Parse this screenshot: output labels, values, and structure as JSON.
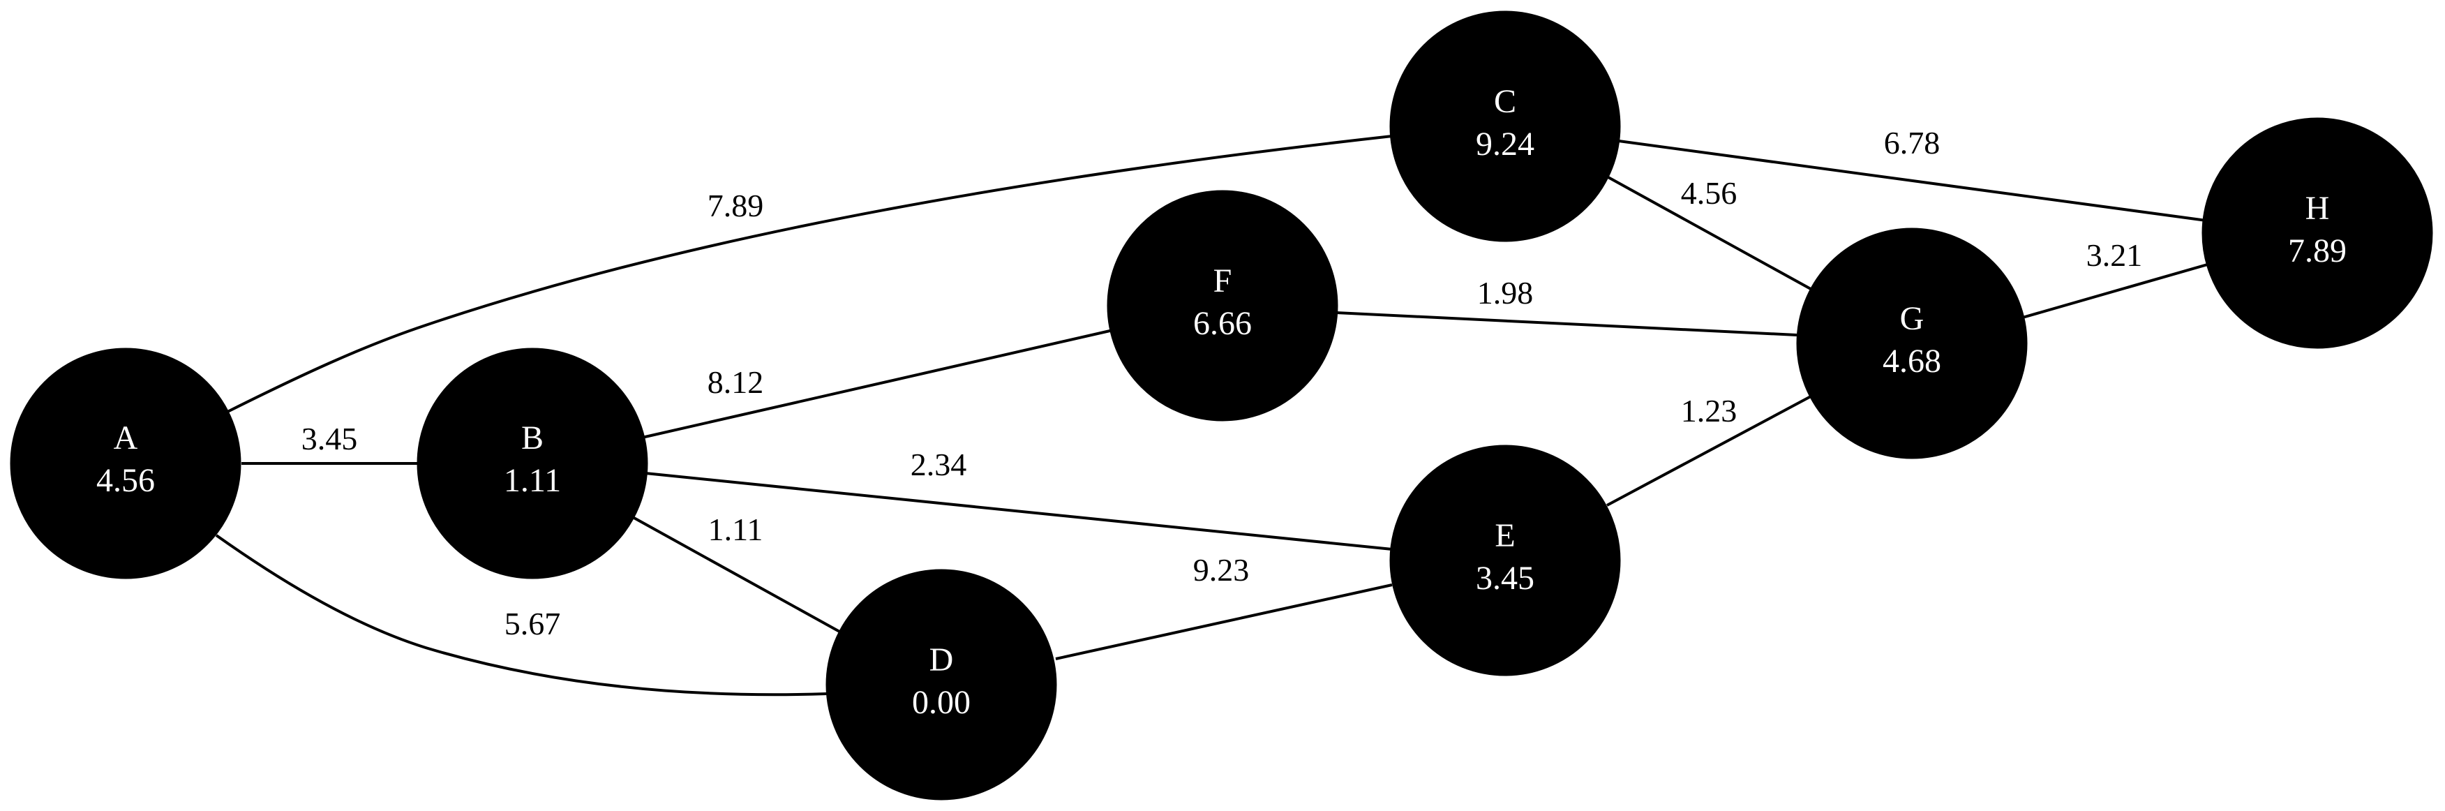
{
  "graph": {
    "nodes": [
      {
        "id": "A",
        "label": "A",
        "value": "4.56"
      },
      {
        "id": "B",
        "label": "B",
        "value": "1.11"
      },
      {
        "id": "C",
        "label": "C",
        "value": "9.24"
      },
      {
        "id": "D",
        "label": "D",
        "value": "0.00"
      },
      {
        "id": "E",
        "label": "E",
        "value": "3.45"
      },
      {
        "id": "F",
        "label": "F",
        "value": "6.66"
      },
      {
        "id": "G",
        "label": "G",
        "value": "4.68"
      },
      {
        "id": "H",
        "label": "H",
        "value": "7.89"
      }
    ],
    "edges": [
      {
        "from": "A",
        "to": "B",
        "weight": "3.45"
      },
      {
        "from": "A",
        "to": "C",
        "weight": "7.89"
      },
      {
        "from": "A",
        "to": "D",
        "weight": "5.67"
      },
      {
        "from": "B",
        "to": "D",
        "weight": "1.11"
      },
      {
        "from": "B",
        "to": "E",
        "weight": "2.34"
      },
      {
        "from": "B",
        "to": "F",
        "weight": "8.12"
      },
      {
        "from": "C",
        "to": "G",
        "weight": "4.56"
      },
      {
        "from": "C",
        "to": "H",
        "weight": "6.78"
      },
      {
        "from": "D",
        "to": "E",
        "weight": "9.23"
      },
      {
        "from": "E",
        "to": "G",
        "weight": "1.23"
      },
      {
        "from": "F",
        "to": "G",
        "weight": "1.98"
      },
      {
        "from": "G",
        "to": "H",
        "weight": "3.21"
      }
    ]
  }
}
